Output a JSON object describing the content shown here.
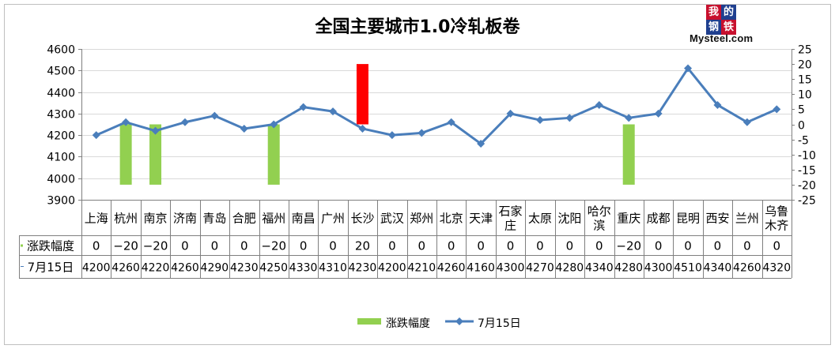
{
  "title": "全国主要城市1.0冷轧板卷",
  "logo": {
    "chars": [
      "我",
      "的",
      "钢",
      "铁"
    ],
    "brand": "Mysteel.com"
  },
  "colors": {
    "bar": "#92d050",
    "bar_positive": "#ff0000",
    "line": "#4a7ebb",
    "grid": "#d9d9d9",
    "axis": "#808080",
    "logo_red": "#c8102e"
  },
  "chart_data": {
    "type": "bar+line",
    "categories": [
      "上海",
      "杭州",
      "南京",
      "济南",
      "青岛",
      "合肥",
      "福州",
      "南昌",
      "广州",
      "长沙",
      "武汉",
      "郑州",
      "北京",
      "天津",
      "石家庄",
      "太原",
      "沈阳",
      "哈尔滨",
      "重庆",
      "成都",
      "昆明",
      "西安",
      "兰州",
      "乌鲁木齐"
    ],
    "category_lines": [
      [
        "上海"
      ],
      [
        "杭州"
      ],
      [
        "南京"
      ],
      [
        "济南"
      ],
      [
        "青岛"
      ],
      [
        "合肥"
      ],
      [
        "福州"
      ],
      [
        "南昌"
      ],
      [
        "广州"
      ],
      [
        "长沙"
      ],
      [
        "武汉"
      ],
      [
        "郑州"
      ],
      [
        "北京"
      ],
      [
        "天津"
      ],
      [
        "石家",
        "庄"
      ],
      [
        "太原"
      ],
      [
        "沈阳"
      ],
      [
        "哈尔",
        "滨"
      ],
      [
        "重庆"
      ],
      [
        "成都"
      ],
      [
        "昆明"
      ],
      [
        "西安"
      ],
      [
        "兰州"
      ],
      [
        "乌鲁",
        "木齐"
      ]
    ],
    "series": [
      {
        "name": "涨跌幅度",
        "type": "bar",
        "axis": "right",
        "values": [
          0,
          -20,
          -20,
          0,
          0,
          0,
          -20,
          0,
          0,
          20,
          0,
          0,
          0,
          0,
          0,
          0,
          0,
          0,
          -20,
          0,
          0,
          0,
          0,
          0
        ]
      },
      {
        "name": "7月15日",
        "type": "line",
        "axis": "left",
        "values": [
          4200,
          4260,
          4220,
          4260,
          4290,
          4230,
          4250,
          4330,
          4310,
          4230,
          4200,
          4210,
          4260,
          4160,
          4300,
          4270,
          4280,
          4340,
          4280,
          4300,
          4510,
          4340,
          4260,
          4320
        ]
      }
    ],
    "y_left": {
      "min": 3900,
      "max": 4600,
      "step": 100
    },
    "y_right": {
      "min": -25,
      "max": 25,
      "step": 5
    },
    "grid": true,
    "legend_position": "bottom"
  }
}
